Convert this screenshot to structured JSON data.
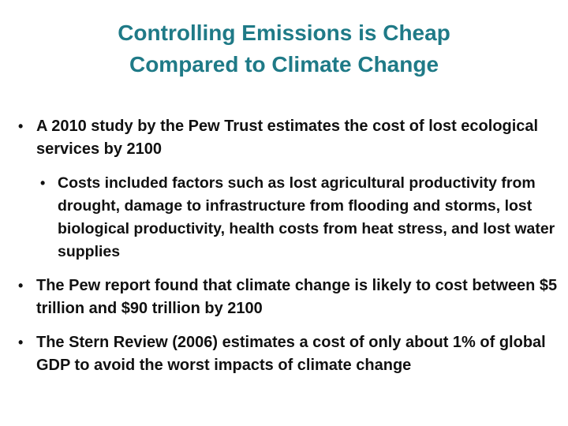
{
  "slide": {
    "title_line1": "Controlling Emissions is Cheap",
    "title_line2": "Compared to Climate Change",
    "bullets": [
      {
        "marker": "•",
        "text": "A 2010 study by the Pew Trust estimates the cost of lost ecological services by 2100",
        "sub": {
          "marker": "•",
          "text": "Costs included factors such as lost agricultural productivity from drought, damage to infrastructure from flooding and storms, lost biological productivity, health costs from heat stress, and lost water supplies"
        }
      },
      {
        "marker": "•",
        "text": "The Pew report found that climate change is likely to cost between $5 trillion and $90 trillion by 2100"
      },
      {
        "marker": "•",
        "text": "The Stern Review (2006) estimates a cost of only about 1% of global GDP to avoid the worst impacts of climate change"
      }
    ]
  },
  "colors": {
    "title": "#1f7a87",
    "text": "#111111",
    "background": "#ffffff"
  }
}
